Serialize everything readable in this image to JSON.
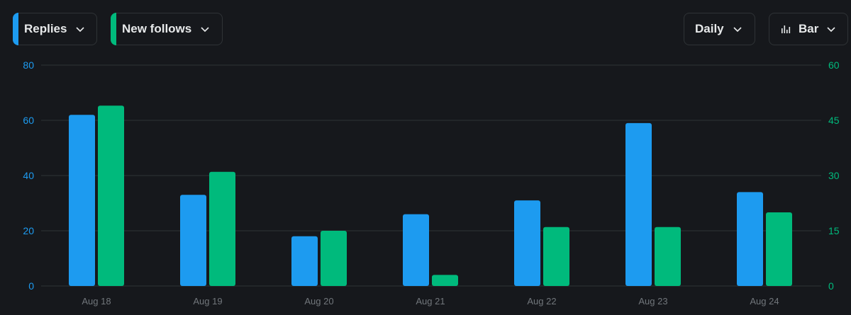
{
  "controls": {
    "metric1": {
      "label": "Replies",
      "color": "#1d9bf0"
    },
    "metric2": {
      "label": "New follows",
      "color": "#00ba7c"
    },
    "interval": {
      "label": "Daily"
    },
    "chart_type": {
      "label": "Bar",
      "icon": "bar-chart-icon"
    }
  },
  "chart_data": {
    "type": "bar",
    "categories": [
      "Aug 18",
      "Aug 19",
      "Aug 20",
      "Aug 21",
      "Aug 22",
      "Aug 23",
      "Aug 24"
    ],
    "series": [
      {
        "name": "Replies",
        "axis": "left",
        "color": "#1d9bf0",
        "values": [
          62,
          33,
          18,
          26,
          31,
          59,
          34
        ]
      },
      {
        "name": "New follows",
        "axis": "right",
        "color": "#00ba7c",
        "values": [
          49,
          31,
          15,
          3,
          16,
          16,
          20
        ]
      }
    ],
    "y_left": {
      "ylim": [
        0,
        80
      ],
      "ticks": [
        "0",
        "20",
        "40",
        "60",
        "80"
      ]
    },
    "y_right": {
      "ylim": [
        0,
        60
      ],
      "ticks": [
        "0",
        "15",
        "30",
        "45",
        "60"
      ]
    },
    "grid": true
  }
}
